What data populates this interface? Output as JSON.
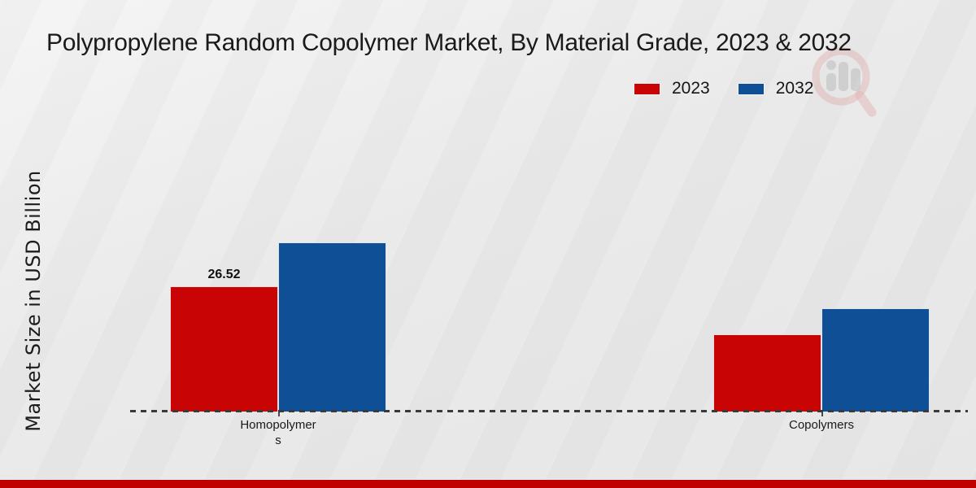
{
  "header": {
    "title": "Polypropylene Random Copolymer Market, By Material Grade, 2023 & 2032"
  },
  "legend": {
    "items": [
      {
        "label": "2023",
        "color": "#c80404"
      },
      {
        "label": "2032",
        "color": "#0e4f96"
      }
    ]
  },
  "chart_data": {
    "type": "bar",
    "title": "Polypropylene Random Copolymer Market, By Material Grade, 2023 & 2032",
    "categories": [
      "Homopolymers",
      "Copolymers"
    ],
    "x_tick_label_lines": [
      [
        "Homopolymer",
        "s"
      ],
      [
        "Copolymers"
      ]
    ],
    "series": [
      {
        "name": "2023",
        "color": "#c80404",
        "values": [
          26.52,
          16.4
        ]
      },
      {
        "name": "2032",
        "color": "#0e4f96",
        "values": [
          35.9,
          21.8
        ]
      }
    ],
    "data_labels": [
      {
        "series": "2023",
        "category": "Homopolymers",
        "text": "26.52"
      }
    ],
    "xlabel": "",
    "ylabel": "Market Size in USD Billion",
    "ylim": [
      0,
      40
    ],
    "grid": false,
    "legend_position": "top-right",
    "x_axis_style": "dashed"
  },
  "watermark": {
    "icon": "magnifier-bar-chart-logo"
  },
  "footer": {
    "accent_color": "#c00000"
  }
}
